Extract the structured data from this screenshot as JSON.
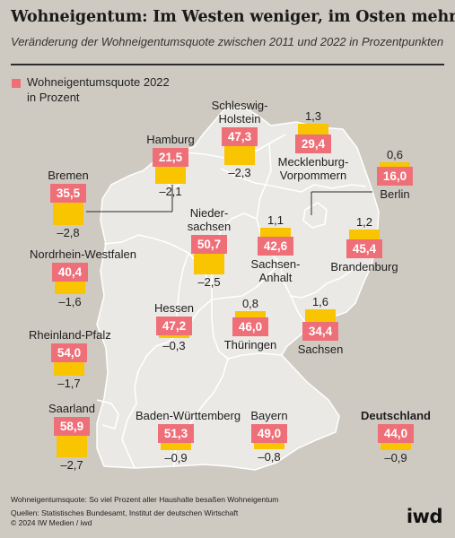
{
  "title": "Wohneigentum: Im Westen weniger, im Osten mehr",
  "subtitle": "Veränderung der Wohneigentumsquote zwischen 2011 und 2022 in Prozentpunkten",
  "legend": {
    "label": "Wohneigentumsquote 2022 in Prozent",
    "color": "#ef6f78"
  },
  "colors": {
    "background": "#cfcac1",
    "map_fill": "#ebe9e5",
    "value_box": "#ef6f78",
    "change_bar": "#f9c400"
  },
  "chart_data": {
    "type": "table",
    "series": [
      {
        "name": "Wohneigentumsquote 2022",
        "unit": "Prozent"
      },
      {
        "name": "Veränderung 2011–2022",
        "unit": "Prozentpunkte"
      }
    ],
    "states": [
      {
        "name": "Schleswig-Holstein",
        "value": "47,3",
        "change": "–2,3",
        "change_num": -2.3
      },
      {
        "name": "Hamburg",
        "value": "21,5",
        "change": "–2,1",
        "change_num": -2.1
      },
      {
        "name": "Mecklenburg-Vorpommern",
        "value": "29,4",
        "change": "1,3",
        "change_num": 1.3
      },
      {
        "name": "Bremen",
        "value": "35,5",
        "change": "–2,8",
        "change_num": -2.8
      },
      {
        "name": "Berlin",
        "value": "16,0",
        "change": "0,6",
        "change_num": 0.6
      },
      {
        "name": "Niedersachsen",
        "value": "50,7",
        "change": "–2,5",
        "change_num": -2.5
      },
      {
        "name": "Sachsen-Anhalt",
        "value": "42,6",
        "change": "1,1",
        "change_num": 1.1
      },
      {
        "name": "Brandenburg",
        "value": "45,4",
        "change": "1,2",
        "change_num": 1.2
      },
      {
        "name": "Nordrhein-Westfalen",
        "value": "40,4",
        "change": "–1,6",
        "change_num": -1.6
      },
      {
        "name": "Hessen",
        "value": "47,2",
        "change": "–0,3",
        "change_num": -0.3
      },
      {
        "name": "Thüringen",
        "value": "46,0",
        "change": "0,8",
        "change_num": 0.8
      },
      {
        "name": "Sachsen",
        "value": "34,4",
        "change": "1,6",
        "change_num": 1.6
      },
      {
        "name": "Rheinland-Pfalz",
        "value": "54,0",
        "change": "–1,7",
        "change_num": -1.7
      },
      {
        "name": "Saarland",
        "value": "58,9",
        "change": "–2,7",
        "change_num": -2.7
      },
      {
        "name": "Baden-Württemberg",
        "value": "51,3",
        "change": "–0,9",
        "change_num": -0.9
      },
      {
        "name": "Bayern",
        "value": "49,0",
        "change": "–0,8",
        "change_num": -0.8
      },
      {
        "name": "Deutschland",
        "value": "44,0",
        "change": "–0,9",
        "change_num": -0.9
      }
    ]
  },
  "footnote": "Wohneigentumsquote: So viel Prozent aller Haushalte besaßen Wohneigentum",
  "source": "Quellen: Statistisches Bundesamt, Institut der deutschen Wirtschaft",
  "copyright": "© 2024 IW Medien / iwd",
  "logo": "iwd"
}
